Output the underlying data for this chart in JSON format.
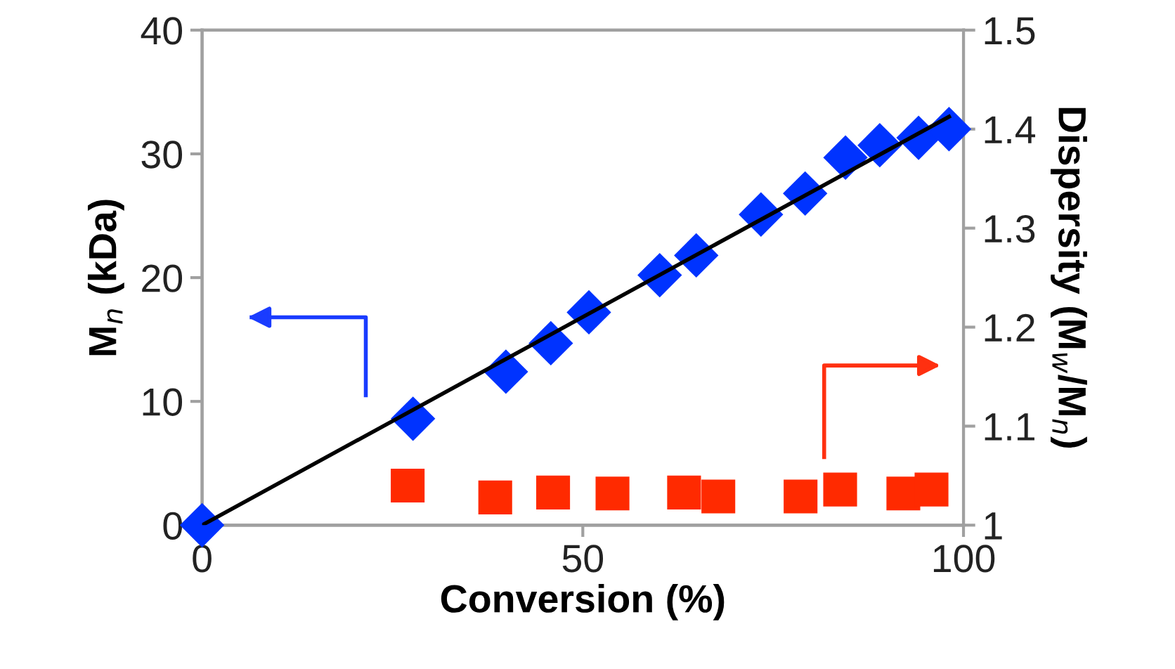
{
  "chart_data": {
    "type": "scatter",
    "xlabel": "Conversion (%)",
    "ylabel": "M$_{n}$ (kDa)",
    "y2label": "Dispersity (M$_{w}$/M$_{n}$)",
    "xlim": [
      0,
      100
    ],
    "xticks": [
      0,
      50,
      100
    ],
    "ylim": [
      0,
      40
    ],
    "yticks": [
      0,
      10,
      20,
      30,
      40
    ],
    "y2lim": [
      1,
      1.5
    ],
    "y2ticks": [
      1,
      1.1,
      1.2,
      1.3,
      1.4,
      1.5
    ],
    "grid": false,
    "series": [
      {
        "marker": "diamond",
        "color": "#0033ff",
        "x": [
          0,
          27.7,
          39.9,
          45.8,
          50.8,
          60.1,
          64.9,
          73.4,
          79.2,
          84.5,
          89.0,
          94.1,
          98.1
        ],
        "values": [
          0,
          8.6,
          12.4,
          14.7,
          17.2,
          20.2,
          21.8,
          25.1,
          26.8,
          29.7,
          30.7,
          31.3,
          32.0
        ]
      },
      {
        "type": "line",
        "marker": "none",
        "color": "#000000",
        "x": [
          0,
          98.1
        ],
        "values": [
          0,
          33.0
        ]
      },
      {
        "marker": "square",
        "color": "#ff2a00",
        "axis": "y2",
        "x": [
          27.0,
          38.5,
          46.1,
          53.9,
          63.3,
          67.8,
          78.6,
          83.8,
          92.1,
          95.8
        ],
        "values": [
          1.04,
          1.028,
          1.033,
          1.032,
          1.033,
          1.029,
          1.029,
          1.036,
          1.032,
          1.036
        ]
      }
    ]
  }
}
